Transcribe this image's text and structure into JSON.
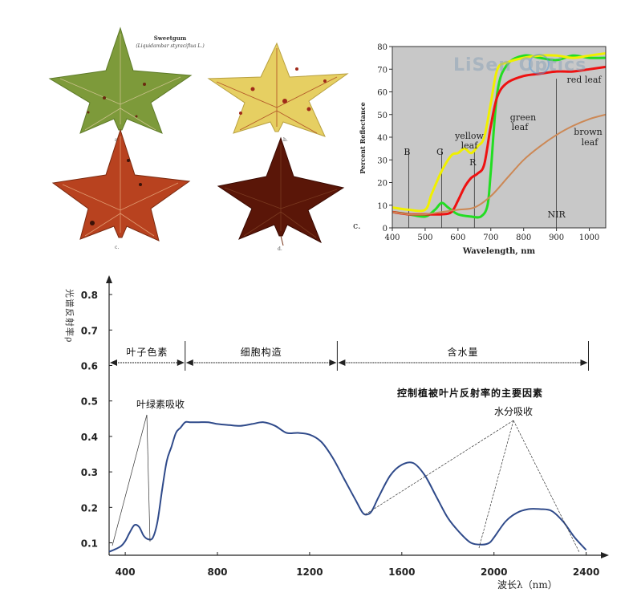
{
  "leaf_panel": {
    "title": "Sweetgum",
    "subtitle": "(Liquidambar styraciflua L.)",
    "labels": [
      "a.",
      "b.",
      "c.",
      "d."
    ],
    "leaf_colors": [
      "#7d9a3a",
      "#e6cf62",
      "#b8421f",
      "#5a1608"
    ]
  },
  "chart_data": [
    {
      "type": "line",
      "panel_label": "c.",
      "watermark": "LiSen Optics",
      "xlabel": "Wavelength, nm",
      "ylabel": "Percent Reflectance",
      "xlim": [
        400,
        1050
      ],
      "ylim": [
        0,
        80
      ],
      "x_ticks": [
        400,
        500,
        600,
        700,
        800,
        900,
        1000
      ],
      "y_ticks": [
        0,
        10,
        20,
        30,
        40,
        50,
        60,
        70,
        80
      ],
      "grid": false,
      "background": "#c8c8c8",
      "band_lines": [
        {
          "label": "B",
          "x": 450
        },
        {
          "label": "G",
          "x": 550
        },
        {
          "label": "R",
          "x": 650
        },
        {
          "label": "NIR",
          "x": 900
        }
      ],
      "series": [
        {
          "name": "green leaf",
          "color": "#22dd22",
          "label_lines": [
            "green",
            "leaf"
          ],
          "x": [
            400,
            450,
            500,
            530,
            550,
            570,
            600,
            640,
            670,
            690,
            700,
            720,
            750,
            800,
            850,
            900,
            950,
            1000,
            1050
          ],
          "y": [
            7,
            6,
            5,
            8,
            11,
            9,
            6,
            5,
            5,
            10,
            25,
            60,
            72,
            76,
            75,
            74,
            76,
            75,
            75
          ]
        },
        {
          "name": "yellow leaf",
          "color": "#f0f000",
          "label_lines": [
            "yellow",
            "leaf"
          ],
          "x": [
            400,
            450,
            500,
            520,
            550,
            580,
            600,
            620,
            640,
            660,
            680,
            700,
            720,
            750,
            800,
            850,
            900,
            950,
            1000,
            1050
          ],
          "y": [
            9,
            8,
            8,
            15,
            25,
            32,
            33,
            35,
            33,
            36,
            40,
            55,
            70,
            73,
            75,
            76,
            76,
            75,
            76,
            77
          ]
        },
        {
          "name": "red leaf",
          "color": "#ee1111",
          "label_lines": [
            "red leaf"
          ],
          "x": [
            400,
            450,
            500,
            550,
            580,
            600,
            620,
            640,
            660,
            680,
            700,
            720,
            750,
            800,
            850,
            900,
            950,
            1000,
            1050
          ],
          "y": [
            7,
            6,
            6,
            6,
            7,
            12,
            18,
            22,
            24,
            28,
            45,
            58,
            64,
            67,
            68,
            69,
            69,
            70,
            71
          ]
        },
        {
          "name": "brown leaf",
          "color": "#cc8855",
          "label_lines": [
            "brown",
            "leaf"
          ],
          "x": [
            400,
            450,
            500,
            550,
            600,
            650,
            700,
            750,
            800,
            850,
            900,
            950,
            1000,
            1050
          ],
          "y": [
            7,
            6,
            6,
            7,
            8,
            9,
            14,
            22,
            30,
            36,
            41,
            45,
            48,
            50
          ]
        }
      ]
    },
    {
      "type": "line",
      "xlabel": "波长λ（nm）",
      "ylabel": "光谱反射率ρ",
      "xlim": [
        330,
        2450
      ],
      "ylim": [
        0.065,
        0.85
      ],
      "x_ticks": [
        400,
        800,
        1200,
        1600,
        2000,
        2400
      ],
      "y_ticks": [
        0.1,
        0.2,
        0.3,
        0.4,
        0.5,
        0.6,
        0.7,
        0.8
      ],
      "grid": false,
      "series": [
        {
          "color": "#2f4a8a",
          "x": [
            330,
            350,
            380,
            400,
            420,
            440,
            460,
            480,
            500,
            520,
            540,
            560,
            580,
            600,
            620,
            640,
            660,
            680,
            700,
            720,
            760,
            800,
            850,
            900,
            950,
            1000,
            1050,
            1100,
            1150,
            1200,
            1250,
            1300,
            1350,
            1400,
            1430,
            1450,
            1470,
            1500,
            1550,
            1600,
            1650,
            1700,
            1750,
            1800,
            1850,
            1900,
            1950,
            1980,
            2000,
            2050,
            2100,
            2150,
            2200,
            2250,
            2300,
            2350,
            2400
          ],
          "y": [
            0.075,
            0.08,
            0.09,
            0.105,
            0.13,
            0.15,
            0.145,
            0.12,
            0.11,
            0.115,
            0.16,
            0.25,
            0.33,
            0.37,
            0.41,
            0.425,
            0.44,
            0.44,
            0.44,
            0.44,
            0.44,
            0.435,
            0.432,
            0.43,
            0.435,
            0.44,
            0.43,
            0.41,
            0.41,
            0.405,
            0.385,
            0.34,
            0.28,
            0.22,
            0.185,
            0.18,
            0.19,
            0.23,
            0.29,
            0.32,
            0.325,
            0.29,
            0.23,
            0.17,
            0.13,
            0.1,
            0.095,
            0.1,
            0.115,
            0.16,
            0.185,
            0.195,
            0.195,
            0.19,
            0.16,
            0.115,
            0.08
          ]
        }
      ],
      "regions": [
        {
          "label": "叶子色素",
          "from": 330,
          "to": 660
        },
        {
          "label": "细胞构造",
          "from": 660,
          "to": 1320
        },
        {
          "label": "含水量",
          "from": 1320,
          "to": 2410
        }
      ],
      "annotations": [
        {
          "text": "控制植被叶片反射率的主要因素"
        },
        {
          "text": "叶绿素吸收"
        },
        {
          "text": "水分吸收"
        }
      ]
    }
  ]
}
